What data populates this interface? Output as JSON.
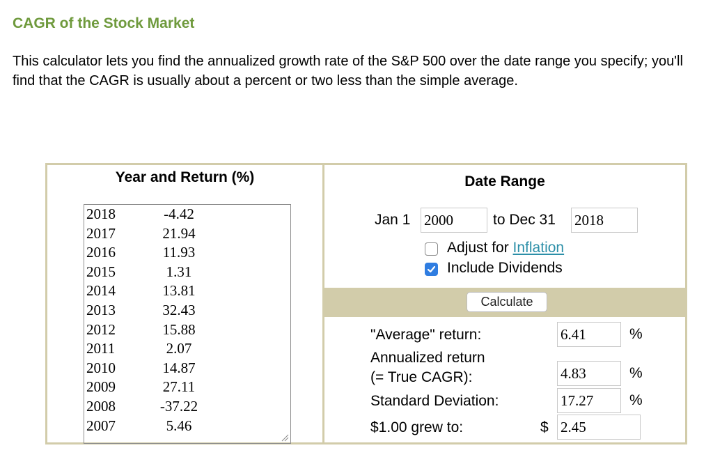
{
  "page": {
    "title": "CAGR of the Stock Market",
    "intro": "This calculator lets you find the annualized growth rate of the S&P 500 over the date range you specify; you'll find that the CAGR is usually about a percent or two less than the simple average."
  },
  "left_panel": {
    "header": "Year and Return (%)",
    "rows": [
      {
        "year": "2018",
        "ret": "-4.42"
      },
      {
        "year": "2017",
        "ret": "21.94"
      },
      {
        "year": "2016",
        "ret": "11.93"
      },
      {
        "year": "2015",
        "ret": "1.31"
      },
      {
        "year": "2014",
        "ret": "13.81"
      },
      {
        "year": "2013",
        "ret": "32.43"
      },
      {
        "year": "2012",
        "ret": "15.88"
      },
      {
        "year": "2011",
        "ret": "2.07"
      },
      {
        "year": "2010",
        "ret": "14.87"
      },
      {
        "year": "2009",
        "ret": "27.11"
      },
      {
        "year": "2008",
        "ret": "-37.22"
      },
      {
        "year": "2007",
        "ret": "5.46"
      }
    ]
  },
  "right_panel": {
    "header": "Date Range",
    "start_prefix": "Jan 1",
    "start_year": "2000",
    "end_prefix": "to Dec 31",
    "end_year": "2018",
    "inflation_prefix": "Adjust for ",
    "inflation_link": "Inflation",
    "inflation_checked": false,
    "dividends_label": "Include Dividends",
    "dividends_checked": true,
    "calculate_label": "Calculate",
    "average_label": "\"Average\" return:",
    "average_value": "6.41",
    "annualized_label_1": "Annualized return",
    "annualized_label_2": "(= True CAGR):",
    "annualized_value": "4.83",
    "stddev_label": "Standard Deviation:",
    "stddev_value": "17.27",
    "grew_label": "$1.00 grew to:",
    "grew_currency": "$",
    "grew_value": "2.45",
    "percent_sign": "%"
  },
  "colors": {
    "title": "#6f9a3d",
    "panel_border": "#d2ccaa",
    "link": "#2c8fa8",
    "checkbox_on": "#2f7de1"
  }
}
